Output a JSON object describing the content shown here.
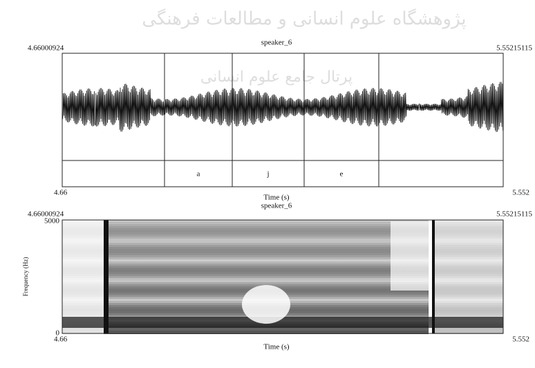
{
  "watermark": {
    "line1": "پژوهشگاه علوم انسانی و مطالعات فرهنگی",
    "line2": "پرتال جامع علوم انسانی"
  },
  "waveform": {
    "start": "4.66000924",
    "title": "speaker_6",
    "end": "5.55215115",
    "segments": [
      "a",
      "j",
      "e"
    ],
    "x_start": "4.66",
    "x_label": "Time (s)",
    "x_end": "5.552"
  },
  "spectrogram": {
    "start": "4.66000924",
    "title": "speaker_6",
    "end": "5.55215115",
    "y_max": "5000",
    "y_min": "0",
    "y_label": "Frequency (Hz)",
    "x_start": "4.66",
    "x_label": "Time (s)",
    "x_end": "5.552"
  }
}
